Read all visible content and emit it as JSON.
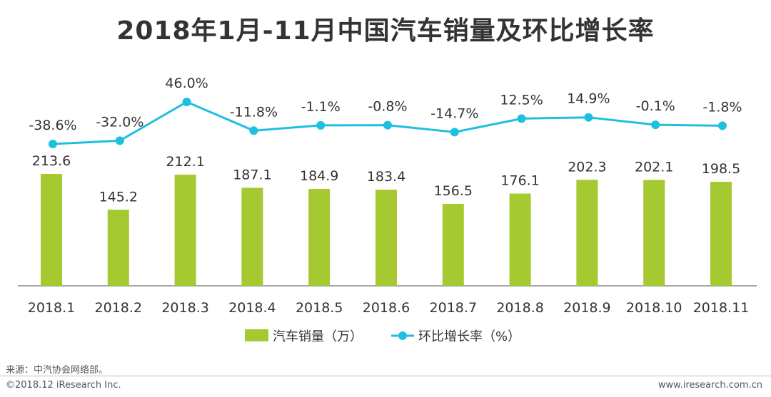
{
  "page": {
    "title": "2018年1月-11月中国汽车销量及环比增长率",
    "source": "来源：中汽协会网络部。",
    "copyright": "©2018.12 iResearch Inc.",
    "website": "www.iresearch.com.cn"
  },
  "colors": {
    "bar": "#a4c931",
    "line": "#1fbfe0",
    "axis": "#888888",
    "text": "#333333"
  },
  "chart_data": {
    "type": "bar+line",
    "categories": [
      "2018.1",
      "2018.2",
      "2018.3",
      "2018.4",
      "2018.5",
      "2018.6",
      "2018.7",
      "2018.8",
      "2018.9",
      "2018.10",
      "2018.11"
    ],
    "series": [
      {
        "name": "汽车销量（万）",
        "type": "bar",
        "values": [
          213.6,
          145.2,
          212.1,
          187.1,
          184.9,
          183.4,
          156.5,
          176.1,
          202.3,
          202.1,
          198.5
        ],
        "labels": [
          "213.6",
          "145.2",
          "212.1",
          "187.1",
          "184.9",
          "183.4",
          "156.5",
          "176.1",
          "202.3",
          "202.1",
          "198.5"
        ]
      },
      {
        "name": "环比增长率（%）",
        "type": "line",
        "values": [
          -38.6,
          -32.0,
          46.0,
          -11.8,
          -1.1,
          -0.8,
          -14.7,
          12.5,
          14.9,
          -0.1,
          -1.8
        ],
        "labels": [
          "-38.6%",
          "-32.0%",
          "46.0%",
          "-11.8%",
          "-1.1%",
          "-0.8%",
          "-14.7%",
          "12.5%",
          "14.9%",
          "-0.1%",
          "-1.8%"
        ]
      }
    ],
    "bar_axis_range": [
      0,
      213.6
    ],
    "line_axis_range": [
      -38.6,
      46.0
    ],
    "legend_position": "bottom-center",
    "grid": false
  }
}
